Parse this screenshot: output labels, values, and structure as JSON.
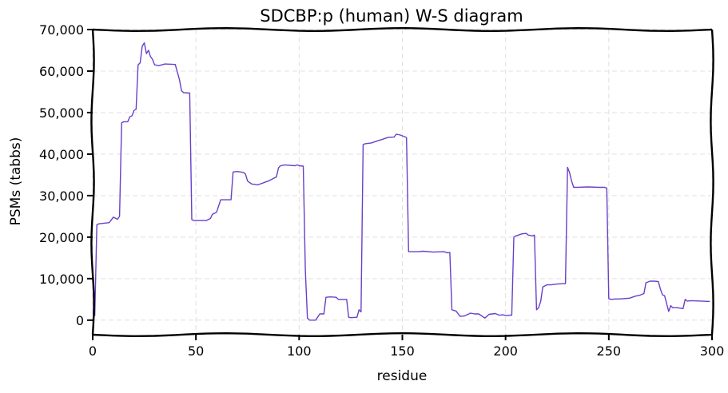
{
  "chart_data": {
    "type": "line",
    "title": "SDCBP:p (human) W-S diagram",
    "xlabel": "residue",
    "ylabel": "PSMs (tabbs)",
    "xlim": [
      0,
      300
    ],
    "ylim": [
      -3500,
      70000
    ],
    "x_ticks": [
      0,
      50,
      100,
      150,
      200,
      250,
      300
    ],
    "x_tick_labels": [
      "0",
      "50",
      "100",
      "150",
      "200",
      "250",
      "300"
    ],
    "y_ticks": [
      0,
      10000,
      20000,
      30000,
      40000,
      50000,
      60000,
      70000
    ],
    "y_tick_labels": [
      "0",
      "10,000",
      "20,000",
      "30,000",
      "40,000",
      "50,000",
      "60,000",
      "70,000"
    ],
    "grid": true,
    "series_color": "#6a3fc8",
    "series": [
      {
        "x": [
          1,
          2,
          3,
          8,
          10,
          12,
          13,
          14,
          15,
          17,
          18,
          19,
          20,
          21,
          22,
          23,
          24,
          25,
          26,
          27,
          28,
          29,
          30,
          32,
          35,
          40,
          42,
          43,
          44,
          47,
          48,
          49,
          55,
          57,
          58,
          60,
          62,
          67,
          68,
          70,
          73,
          74,
          75,
          77,
          80,
          85,
          89,
          90,
          91,
          93,
          98,
          99,
          100,
          102,
          103,
          104,
          105,
          106,
          108,
          110,
          112,
          113,
          115,
          118,
          119,
          123,
          124,
          125,
          128,
          129,
          130,
          131,
          132,
          135,
          138,
          140,
          143,
          146,
          147,
          149,
          151,
          152,
          153,
          158,
          160,
          165,
          170,
          172,
          173,
          174,
          176,
          178,
          180,
          183,
          185,
          187,
          190,
          192,
          195,
          197,
          199,
          200,
          202,
          203,
          204,
          205,
          208,
          210,
          211,
          213,
          214,
          215,
          216,
          217,
          218,
          220,
          222,
          225,
          228,
          229,
          230,
          231,
          232,
          233,
          235,
          240,
          245,
          248,
          249,
          250,
          251,
          253,
          255,
          260,
          263,
          265,
          267,
          268,
          270,
          272,
          274,
          275,
          276,
          277,
          279,
          280,
          281,
          282,
          283,
          286,
          287,
          288,
          290,
          299
        ],
        "y": [
          1000,
          23000,
          23200,
          23500,
          24800,
          24300,
          25000,
          47500,
          47800,
          47800,
          49000,
          49200,
          50500,
          50800,
          61500,
          62000,
          66000,
          66800,
          64200,
          65000,
          63500,
          62800,
          61500,
          61300,
          61700,
          61600,
          58000,
          55300,
          54800,
          54700,
          24200,
          24000,
          24000,
          24500,
          25500,
          26000,
          29000,
          29000,
          35700,
          35800,
          35600,
          35200,
          33500,
          32800,
          32600,
          33500,
          34500,
          36700,
          37200,
          37400,
          37200,
          37400,
          37200,
          37100,
          12000,
          500,
          0,
          0,
          0,
          1500,
          1500,
          5500,
          5600,
          5500,
          5000,
          5000,
          700,
          600,
          700,
          2500,
          2000,
          42300,
          42500,
          42700,
          43200,
          43500,
          44000,
          44100,
          44800,
          44600,
          44200,
          44000,
          16500,
          16500,
          16600,
          16400,
          16500,
          16200,
          16300,
          2500,
          2200,
          900,
          1000,
          1700,
          1500,
          1500,
          500,
          1400,
          1600,
          1200,
          1300,
          1100,
          1200,
          1200,
          20000,
          20300,
          20800,
          20900,
          20500,
          20300,
          20500,
          2500,
          3000,
          4500,
          8000,
          8500,
          8500,
          8700,
          8800,
          8800,
          36800,
          35500,
          33500,
          32000,
          32000,
          32100,
          32000,
          32000,
          31800,
          5200,
          5000,
          5100,
          5100,
          5300,
          5800,
          6000,
          6400,
          9000,
          9400,
          9400,
          9300,
          7500,
          6100,
          5900,
          2100,
          3500,
          3000,
          3000,
          3000,
          2800,
          5000,
          4600,
          4700,
          4500
        ]
      }
    ]
  }
}
